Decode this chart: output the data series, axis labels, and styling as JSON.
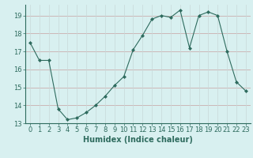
{
  "x": [
    0,
    1,
    2,
    3,
    4,
    5,
    6,
    7,
    8,
    9,
    10,
    11,
    12,
    13,
    14,
    15,
    16,
    17,
    18,
    19,
    20,
    21,
    22,
    23
  ],
  "y": [
    17.5,
    16.5,
    16.5,
    13.8,
    13.2,
    13.3,
    13.6,
    14.0,
    14.5,
    15.1,
    15.6,
    17.1,
    17.9,
    18.8,
    19.0,
    18.9,
    19.3,
    17.2,
    19.0,
    19.2,
    19.0,
    17.0,
    15.3,
    14.8
  ],
  "title": "",
  "xlabel": "Humidex (Indice chaleur)",
  "ylabel": "",
  "xlim": [
    -0.5,
    23.5
  ],
  "ylim": [
    13.0,
    19.6
  ],
  "yticks": [
    13,
    14,
    15,
    16,
    17,
    18,
    19
  ],
  "xticks": [
    0,
    1,
    2,
    3,
    4,
    5,
    6,
    7,
    8,
    9,
    10,
    11,
    12,
    13,
    14,
    15,
    16,
    17,
    18,
    19,
    20,
    21,
    22,
    23
  ],
  "line_color": "#2e6b5e",
  "marker": "D",
  "marker_size": 2.0,
  "bg_color": "#d8f0f0",
  "grid_color_h": "#c8a0a0",
  "grid_color_v": "#c8d8d8",
  "axes_color": "#2e6b5e",
  "label_color": "#2e6b5e",
  "tick_label_color": "#2e6b5e",
  "xlabel_fontsize": 7,
  "tick_fontsize": 6
}
